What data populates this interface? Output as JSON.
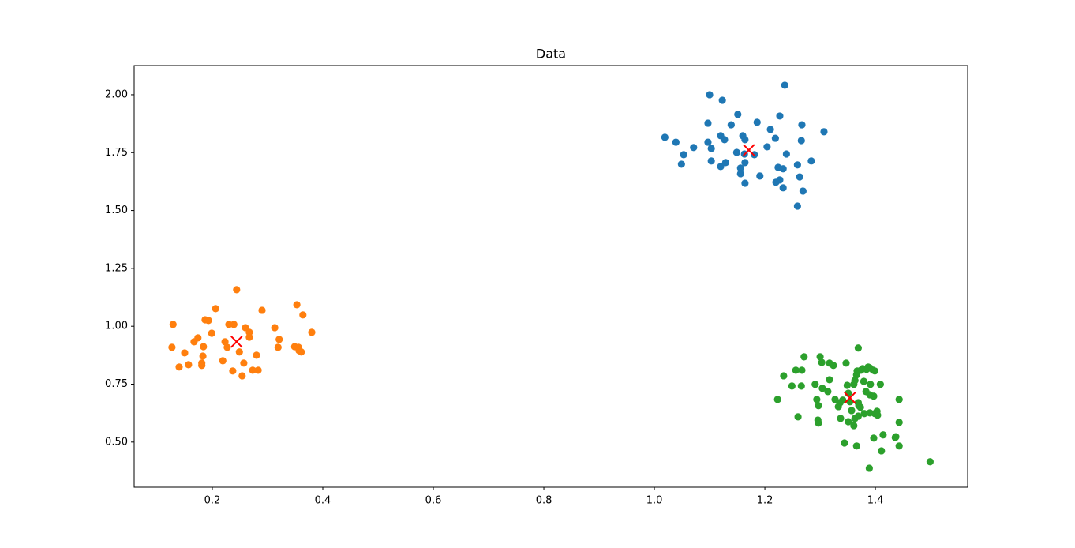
{
  "chart_data": {
    "type": "scatter",
    "title": "Data",
    "xlim": [
      0.0586,
      1.567
    ],
    "ylim": [
      0.305,
      2.126
    ],
    "xticks": [
      0.2,
      0.4,
      0.6,
      0.8,
      {
        "value": 1,
        "label": "1.0"
      },
      1.2,
      1.4
    ],
    "yticks": [
      {
        "value": 0.5,
        "label": "0.50"
      },
      {
        "value": 0.75,
        "label": "0.75"
      },
      {
        "value": 1,
        "label": "1.00"
      },
      {
        "value": 1.25,
        "label": "1.25"
      },
      {
        "value": 1.5,
        "label": "1.50"
      },
      {
        "value": 1.75,
        "label": "1.75"
      },
      {
        "value": 2,
        "label": "2.00"
      }
    ],
    "series": [
      {
        "color": "#1f77b4",
        "marker": "o",
        "x": [
          1.019,
          1.039,
          1.053,
          1.049,
          1.071,
          1.097,
          1.1,
          1.097,
          1.103,
          1.103,
          1.12,
          1.123,
          1.127,
          1.12,
          1.129,
          1.139,
          1.151,
          1.149,
          1.156,
          1.156,
          1.16,
          1.164,
          1.164,
          1.164,
          1.163,
          1.181,
          1.186,
          1.191,
          1.204,
          1.21,
          1.219,
          1.227,
          1.236,
          1.22,
          1.227,
          1.224,
          1.233,
          1.233,
          1.239,
          1.259,
          1.263,
          1.266,
          1.267,
          1.269,
          1.259,
          1.284,
          1.307
        ],
        "values": [
          1.816,
          1.795,
          1.741,
          1.7,
          1.772,
          1.877,
          2.0,
          1.795,
          1.768,
          1.714,
          1.823,
          1.976,
          1.806,
          1.69,
          1.707,
          1.87,
          1.915,
          1.751,
          1.683,
          1.659,
          1.823,
          1.806,
          1.707,
          1.618,
          1.744,
          1.741,
          1.881,
          1.649,
          1.775,
          1.85,
          1.812,
          1.908,
          2.041,
          1.622,
          1.632,
          1.686,
          1.68,
          1.598,
          1.744,
          1.697,
          1.645,
          1.802,
          1.87,
          1.584,
          1.519,
          1.714,
          1.84
        ]
      },
      {
        "color": "#ff7f0e",
        "marker": "o",
        "x": [
          0.129,
          0.127,
          0.14,
          0.15,
          0.157,
          0.167,
          0.174,
          0.181,
          0.181,
          0.183,
          0.184,
          0.187,
          0.193,
          0.199,
          0.206,
          0.219,
          0.223,
          0.227,
          0.23,
          0.239,
          0.237,
          0.244,
          0.249,
          0.254,
          0.257,
          0.26,
          0.267,
          0.267,
          0.273,
          0.28,
          0.283,
          0.29,
          0.313,
          0.319,
          0.321,
          0.349,
          0.353,
          0.356,
          0.357,
          0.361,
          0.364,
          0.38
        ],
        "values": [
          1.008,
          0.909,
          0.824,
          0.885,
          0.834,
          0.933,
          0.95,
          0.841,
          0.831,
          0.871,
          0.912,
          1.028,
          1.025,
          0.97,
          1.076,
          0.851,
          0.933,
          0.909,
          1.008,
          1.008,
          0.807,
          1.158,
          0.889,
          0.786,
          0.841,
          0.994,
          0.974,
          0.953,
          0.81,
          0.875,
          0.81,
          1.069,
          0.994,
          0.909,
          0.943,
          0.912,
          1.093,
          0.909,
          0.895,
          0.889,
          1.049,
          0.974
        ]
      },
      {
        "color": "#2ca02c",
        "marker": "o",
        "x": [
          1.223,
          1.234,
          1.256,
          1.26,
          1.267,
          1.266,
          1.271,
          1.249,
          1.291,
          1.294,
          1.296,
          1.297,
          1.297,
          1.3,
          1.303,
          1.304,
          1.314,
          1.317,
          1.317,
          1.324,
          1.327,
          1.333,
          1.336,
          1.337,
          1.341,
          1.344,
          1.347,
          1.349,
          1.351,
          1.351,
          1.354,
          1.357,
          1.361,
          1.363,
          1.366,
          1.363,
          1.367,
          1.369,
          1.369,
          1.369,
          1.37,
          1.373,
          1.374,
          1.377,
          1.379,
          1.38,
          1.383,
          1.384,
          1.387,
          1.39,
          1.39,
          1.39,
          1.391,
          1.397,
          1.396,
          1.397,
          1.399,
          1.399,
          1.403,
          1.404,
          1.409,
          1.411,
          1.414,
          1.436,
          1.437,
          1.443,
          1.443,
          1.443,
          1.499,
          1.389,
          1.366,
          1.361
        ],
        "values": [
          0.684,
          0.786,
          0.81,
          0.609,
          0.81,
          0.742,
          0.868,
          0.742,
          0.749,
          0.684,
          0.595,
          0.582,
          0.657,
          0.868,
          0.844,
          0.732,
          0.718,
          0.769,
          0.841,
          0.831,
          0.684,
          0.653,
          0.67,
          0.602,
          0.681,
          0.496,
          0.841,
          0.745,
          0.711,
          0.588,
          0.674,
          0.636,
          0.749,
          0.766,
          0.79,
          0.602,
          0.807,
          0.906,
          0.67,
          0.612,
          0.657,
          0.65,
          0.81,
          0.817,
          0.762,
          0.623,
          0.718,
          0.814,
          0.824,
          0.704,
          0.626,
          0.82,
          0.749,
          0.698,
          0.81,
          0.517,
          0.623,
          0.807,
          0.633,
          0.616,
          0.749,
          0.462,
          0.531,
          0.52,
          0.523,
          0.684,
          0.585,
          0.483,
          0.415,
          0.387,
          0.483,
          0.571
        ]
      },
      {
        "color": "#ff0000",
        "marker": "x",
        "x": [
          1.171,
          0.244,
          1.354
        ],
        "values": [
          1.761,
          0.933,
          0.691
        ]
      }
    ]
  }
}
